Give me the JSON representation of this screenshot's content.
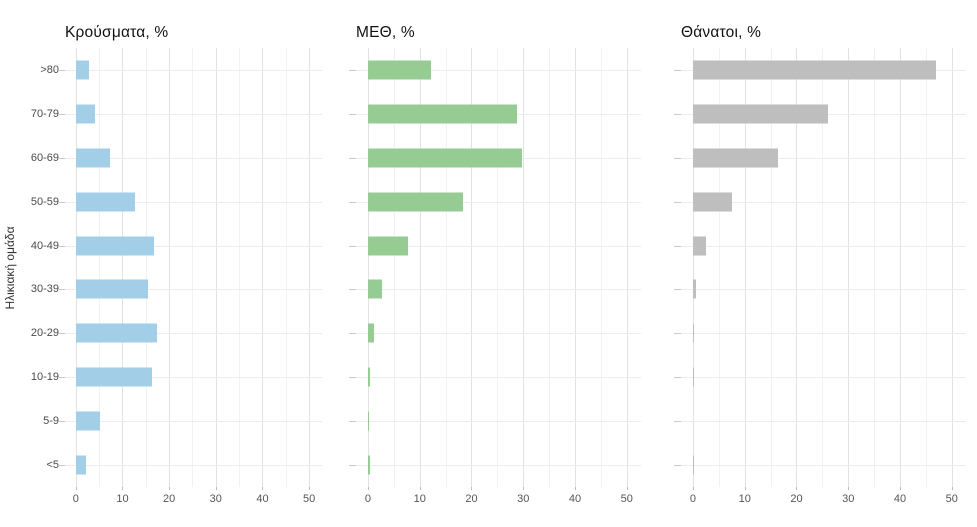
{
  "chart_data": {
    "type": "bar",
    "orientation": "horizontal",
    "y_axis_title": "Ηλικιακή ομάδα",
    "categories": [
      ">80",
      "70-79",
      "60-69",
      "50-59",
      "40-49",
      "30-39",
      "20-29",
      "10-19",
      "5-9",
      "<5"
    ],
    "x_ticks": [
      0,
      10,
      20,
      30,
      40,
      50
    ],
    "xlim": [
      0,
      52
    ],
    "grid": "on",
    "legend": "none",
    "panels": [
      {
        "title": "Κρούσματα, %",
        "color": "#a3cee8",
        "values": [
          2.8,
          4.1,
          7.3,
          12.7,
          16.7,
          15.4,
          17.5,
          16.3,
          5.2,
          2.1
        ]
      },
      {
        "title": "ΜΕΘ, %",
        "color": "#96cb94",
        "values": [
          12.2,
          28.7,
          29.8,
          18.3,
          7.7,
          2.8,
          1.1,
          0.4,
          0.2,
          0.3
        ]
      },
      {
        "title": "Θάνατοι, %",
        "color": "#bebebe",
        "values": [
          47.0,
          26.0,
          16.5,
          7.5,
          2.6,
          0.6,
          0.2,
          0.2,
          0.0,
          0.1
        ]
      }
    ]
  }
}
